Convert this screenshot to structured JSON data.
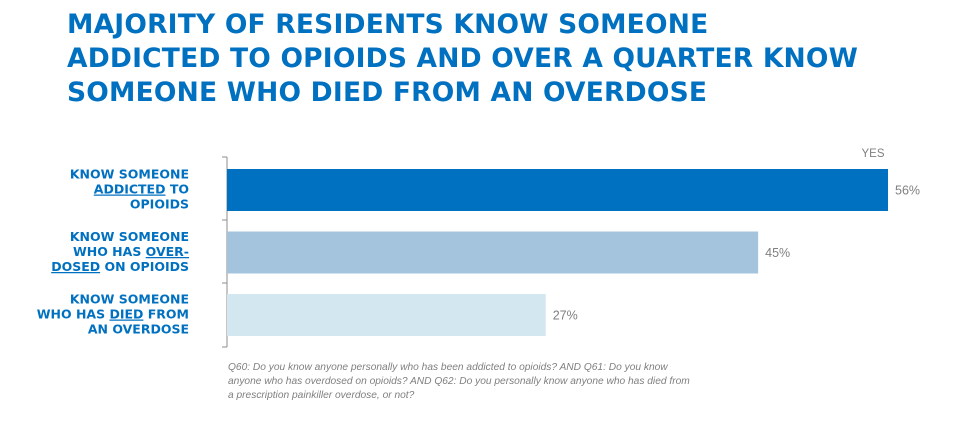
{
  "title_lines": [
    "MAJORITY OF RESIDENTS KNOW SOMEONE",
    "ADDICTED TO OPIOIDS AND OVER A QUARTER KNOW",
    "SOMEONE WHO DIED FROM AN OVERDOSE"
  ],
  "footnote": "Q60: Do you know anyone personally who has been addicted to opioids? AND Q61: Do you know anyone who has overdosed on opioids? AND Q62: Do you personally know anyone who has died from a prescription painkiller overdose, or not?",
  "chart_data": {
    "type": "bar",
    "orientation": "horizontal",
    "value_header": "YES",
    "categories": [
      "KNOW SOMEONE ADDICTED TO OPIOIDS",
      "KNOW SOMEONE WHO HAS OVER-DOSED ON OPIOIDS",
      "KNOW SOMEONE WHO HAS DIED FROM AN OVERDOSE"
    ],
    "category_label_lines": [
      [
        [
          {
            "t": "KNOW SOMEONE"
          }
        ],
        [
          {
            "t": "ADDICTED",
            "u": true
          },
          {
            "t": " TO"
          }
        ],
        [
          {
            "t": "OPIOIDS"
          }
        ]
      ],
      [
        [
          {
            "t": "KNOW SOMEONE"
          }
        ],
        [
          {
            "t": "WHO HAS "
          },
          {
            "t": "OVER-",
            "u": true
          }
        ],
        [
          {
            "t": "DOSED",
            "u": true
          },
          {
            "t": " ON OPIOIDS"
          }
        ]
      ],
      [
        [
          {
            "t": "KNOW SOMEONE"
          }
        ],
        [
          {
            "t": "WHO HAS "
          },
          {
            "t": "DIED",
            "u": true
          },
          {
            "t": " FROM"
          }
        ],
        [
          {
            "t": "AN OVERDOSE"
          }
        ]
      ]
    ],
    "values": [
      56,
      45,
      27
    ],
    "value_labels": [
      "56%",
      "45%",
      "27%"
    ],
    "colors": [
      "#0070c0",
      "#a3c4dc",
      "#d2e7f0"
    ],
    "xlim": [
      0,
      56
    ],
    "grid": false
  }
}
